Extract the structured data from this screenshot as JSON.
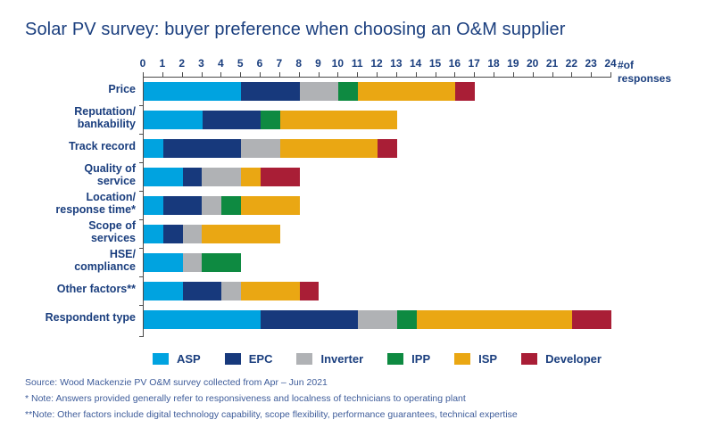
{
  "title": "Solar PV survey: buyer preference when choosing an O&M supplier",
  "axis": {
    "unit_label_line1": "#of",
    "unit_label_line2": "responses",
    "min": 0,
    "max": 24,
    "step": 1
  },
  "colors": {
    "title_text": "#1A3E7E",
    "axis_line": "#4A4A4A",
    "footnote_text": "#3E5C9A",
    "background": "#FFFFFF"
  },
  "chart_data": {
    "type": "bar",
    "orientation": "horizontal_stacked",
    "xlim": [
      0,
      24
    ],
    "x_ticks": [
      0,
      1,
      2,
      3,
      4,
      5,
      6,
      7,
      8,
      9,
      10,
      11,
      12,
      13,
      14,
      15,
      16,
      17,
      18,
      19,
      20,
      21,
      22,
      23,
      24
    ],
    "grid": false,
    "legend_position": "bottom",
    "categories": [
      "Price",
      "Reputation/\nbankability",
      "Track record",
      "Quality of\nservice",
      "Location/\nresponse time*",
      "Scope of\nservices",
      "HSE/\ncompliance",
      "Other factors**",
      "Respondent type"
    ],
    "series": [
      {
        "name": "ASP",
        "color": "#00A3E0",
        "values": [
          5,
          3,
          1,
          2,
          1,
          1,
          2,
          2,
          6
        ]
      },
      {
        "name": "EPC",
        "color": "#17397C",
        "values": [
          3,
          3,
          4,
          1,
          2,
          1,
          0,
          2,
          5
        ]
      },
      {
        "name": "Inverter",
        "color": "#B0B2B5",
        "values": [
          2,
          0,
          2,
          2,
          1,
          1,
          1,
          1,
          2
        ]
      },
      {
        "name": "IPP",
        "color": "#0E8A41",
        "values": [
          1,
          1,
          0,
          0,
          1,
          0,
          2,
          0,
          1
        ]
      },
      {
        "name": "ISP",
        "color": "#EAA713",
        "values": [
          5,
          6,
          5,
          1,
          3,
          4,
          0,
          3,
          8
        ]
      },
      {
        "name": "Developer",
        "color": "#A91E36",
        "values": [
          1,
          0,
          1,
          2,
          0,
          0,
          0,
          1,
          2
        ]
      }
    ],
    "category_totals": [
      17,
      13,
      13,
      8,
      8,
      7,
      5,
      9,
      24
    ]
  },
  "footnotes": [
    "Source: Wood Mackenzie PV O&M survey collected from Apr – Jun 2021",
    "* Note: Answers provided generally refer to responsiveness and localness of technicians to operating plant",
    "**Note: Other factors include digital technology capability, scope flexibility, performance  guarantees, technical expertise"
  ]
}
